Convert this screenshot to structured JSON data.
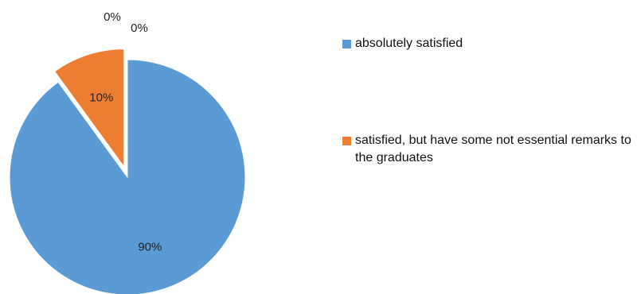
{
  "chart_data": {
    "type": "pie",
    "title": "",
    "slices": [
      {
        "label": "absolutely satisfied",
        "value": 90,
        "data_label": "90%",
        "color": "#5B9BD5",
        "exploded": false
      },
      {
        "label": "satisfied, but have some not essential remarks to the graduates",
        "value": 10,
        "data_label": "10%",
        "color": "#ED7D31",
        "exploded": true
      },
      {
        "label": "",
        "value": 0,
        "data_label": "0%",
        "color": "#A5A5A5",
        "exploded": false
      },
      {
        "label": "",
        "value": 0,
        "data_label": "0%",
        "color": "#FFC000",
        "exploded": false
      }
    ],
    "legend": {
      "position": "right",
      "entries": [
        {
          "label": "absolutely satisfied",
          "color": "#5B9BD5"
        },
        {
          "label": "satisfied, but have some not essential remarks to the graduates",
          "color": "#ED7D31"
        }
      ]
    }
  }
}
